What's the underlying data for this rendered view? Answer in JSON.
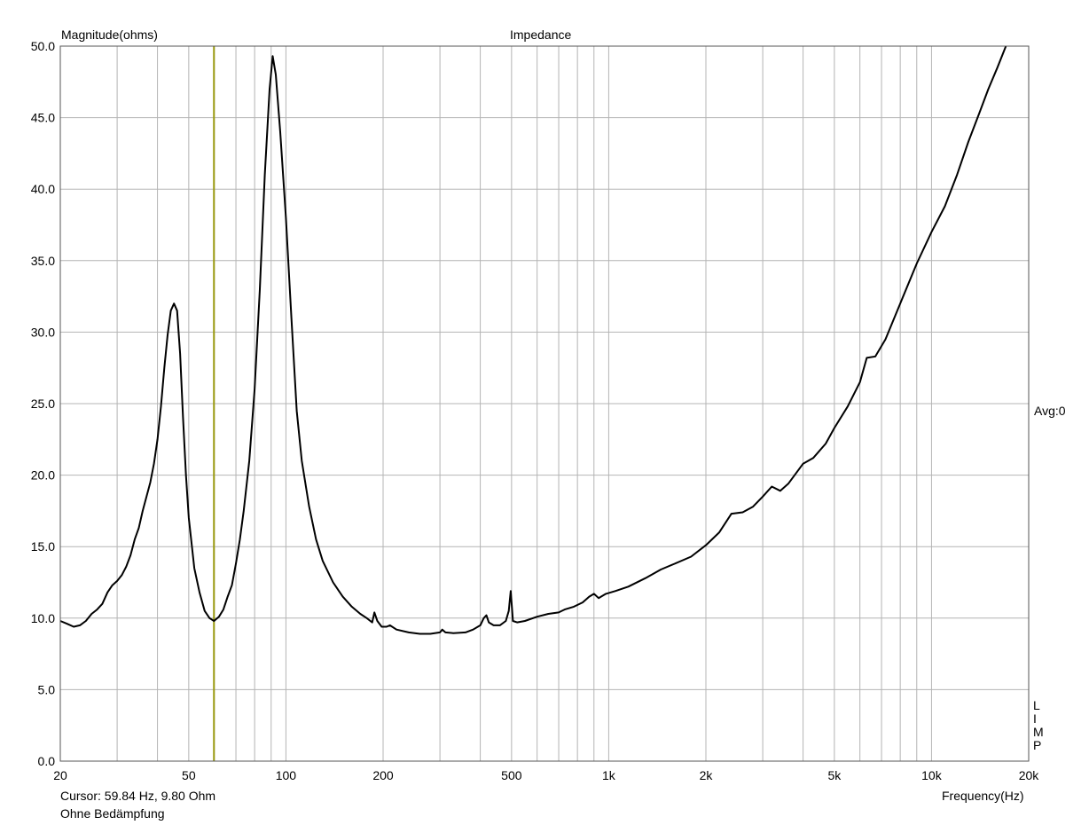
{
  "chart_data": {
    "type": "line",
    "title": "Impedance",
    "ylabel": "Magnitude(ohms)",
    "xlabel": "Frequency(Hz)",
    "x_scale": "log",
    "xlim": [
      20,
      20000
    ],
    "ylim": [
      0,
      50
    ],
    "grid": true,
    "y_ticks": [
      "0.0",
      "5.0",
      "10.0",
      "15.0",
      "20.0",
      "25.0",
      "30.0",
      "35.0",
      "40.0",
      "45.0",
      "50.0"
    ],
    "x_ticks": [
      {
        "value": 20,
        "label": "20"
      },
      {
        "value": 50,
        "label": "50"
      },
      {
        "value": 100,
        "label": "100"
      },
      {
        "value": 200,
        "label": "200"
      },
      {
        "value": 500,
        "label": "500"
      },
      {
        "value": 1000,
        "label": "1k"
      },
      {
        "value": 2000,
        "label": "2k"
      },
      {
        "value": 5000,
        "label": "5k"
      },
      {
        "value": 10000,
        "label": "10k"
      },
      {
        "value": 20000,
        "label": "20k"
      }
    ],
    "cursor": {
      "frequency": 59.84,
      "magnitude": 9.8,
      "color": "#9a9a10"
    },
    "series": [
      {
        "color": "#000000",
        "points": [
          [
            20,
            9.8
          ],
          [
            21,
            9.6
          ],
          [
            22,
            9.4
          ],
          [
            23,
            9.5
          ],
          [
            24,
            9.8
          ],
          [
            25,
            10.3
          ],
          [
            26,
            10.6
          ],
          [
            27,
            11.0
          ],
          [
            28,
            11.8
          ],
          [
            29,
            12.3
          ],
          [
            30,
            12.6
          ],
          [
            31,
            13.0
          ],
          [
            32,
            13.6
          ],
          [
            33,
            14.4
          ],
          [
            34,
            15.5
          ],
          [
            35,
            16.3
          ],
          [
            36,
            17.5
          ],
          [
            38,
            19.5
          ],
          [
            39,
            20.8
          ],
          [
            40,
            22.5
          ],
          [
            41,
            24.8
          ],
          [
            42,
            27.5
          ],
          [
            43,
            29.8
          ],
          [
            44,
            31.5
          ],
          [
            45,
            32.0
          ],
          [
            46,
            31.5
          ],
          [
            47,
            28.5
          ],
          [
            48,
            24.0
          ],
          [
            49,
            20.0
          ],
          [
            50,
            17.0
          ],
          [
            52,
            13.5
          ],
          [
            54,
            11.8
          ],
          [
            56,
            10.5
          ],
          [
            58,
            10.0
          ],
          [
            59.84,
            9.8
          ],
          [
            62,
            10.1
          ],
          [
            64,
            10.6
          ],
          [
            66,
            11.5
          ],
          [
            68,
            12.3
          ],
          [
            70,
            13.8
          ],
          [
            72,
            15.5
          ],
          [
            74,
            17.5
          ],
          [
            77,
            21.0
          ],
          [
            80,
            26.0
          ],
          [
            83,
            33.0
          ],
          [
            86,
            41.0
          ],
          [
            89,
            47.0
          ],
          [
            91,
            49.3
          ],
          [
            93,
            48.0
          ],
          [
            96,
            44.0
          ],
          [
            100,
            38.0
          ],
          [
            104,
            31.0
          ],
          [
            108,
            24.5
          ],
          [
            112,
            21.0
          ],
          [
            118,
            17.8
          ],
          [
            124,
            15.5
          ],
          [
            130,
            14.0
          ],
          [
            140,
            12.5
          ],
          [
            150,
            11.5
          ],
          [
            160,
            10.8
          ],
          [
            170,
            10.3
          ],
          [
            178,
            10.0
          ],
          [
            185,
            9.7
          ],
          [
            188,
            10.4
          ],
          [
            192,
            9.8
          ],
          [
            198,
            9.4
          ],
          [
            205,
            9.4
          ],
          [
            210,
            9.5
          ],
          [
            220,
            9.2
          ],
          [
            240,
            9.0
          ],
          [
            260,
            8.9
          ],
          [
            280,
            8.9
          ],
          [
            300,
            9.0
          ],
          [
            305,
            9.2
          ],
          [
            312,
            9.0
          ],
          [
            330,
            8.95
          ],
          [
            360,
            9.0
          ],
          [
            380,
            9.2
          ],
          [
            400,
            9.5
          ],
          [
            410,
            10.0
          ],
          [
            418,
            10.2
          ],
          [
            425,
            9.7
          ],
          [
            440,
            9.5
          ],
          [
            460,
            9.5
          ],
          [
            480,
            9.8
          ],
          [
            490,
            10.5
          ],
          [
            497,
            11.9
          ],
          [
            505,
            9.8
          ],
          [
            520,
            9.7
          ],
          [
            550,
            9.8
          ],
          [
            600,
            10.1
          ],
          [
            650,
            10.3
          ],
          [
            700,
            10.4
          ],
          [
            730,
            10.6
          ],
          [
            780,
            10.8
          ],
          [
            830,
            11.1
          ],
          [
            870,
            11.5
          ],
          [
            900,
            11.7
          ],
          [
            930,
            11.4
          ],
          [
            980,
            11.7
          ],
          [
            1050,
            11.9
          ],
          [
            1150,
            12.2
          ],
          [
            1300,
            12.8
          ],
          [
            1450,
            13.4
          ],
          [
            1600,
            13.8
          ],
          [
            1800,
            14.3
          ],
          [
            2000,
            15.1
          ],
          [
            2200,
            16.0
          ],
          [
            2400,
            17.3
          ],
          [
            2600,
            17.4
          ],
          [
            2800,
            17.8
          ],
          [
            3000,
            18.5
          ],
          [
            3200,
            19.2
          ],
          [
            3400,
            18.9
          ],
          [
            3600,
            19.4
          ],
          [
            4000,
            20.8
          ],
          [
            4300,
            21.2
          ],
          [
            4700,
            22.2
          ],
          [
            5000,
            23.3
          ],
          [
            5500,
            24.8
          ],
          [
            6000,
            26.5
          ],
          [
            6300,
            28.2
          ],
          [
            6700,
            28.3
          ],
          [
            7200,
            29.5
          ],
          [
            8000,
            32.0
          ],
          [
            9000,
            34.8
          ],
          [
            10000,
            37.0
          ],
          [
            11000,
            38.8
          ],
          [
            12000,
            41.0
          ],
          [
            13000,
            43.3
          ],
          [
            14000,
            45.2
          ],
          [
            15000,
            47.0
          ],
          [
            16000,
            48.5
          ],
          [
            17000,
            50.0
          ]
        ]
      }
    ]
  },
  "status": {
    "cursor_text": "Cursor: 59.84 Hz, 9.80 Ohm",
    "note": "Ohne Bedämpfung"
  },
  "side_labels": {
    "avg": "Avg:0",
    "limp": [
      "L",
      "I",
      "M",
      "P"
    ]
  }
}
